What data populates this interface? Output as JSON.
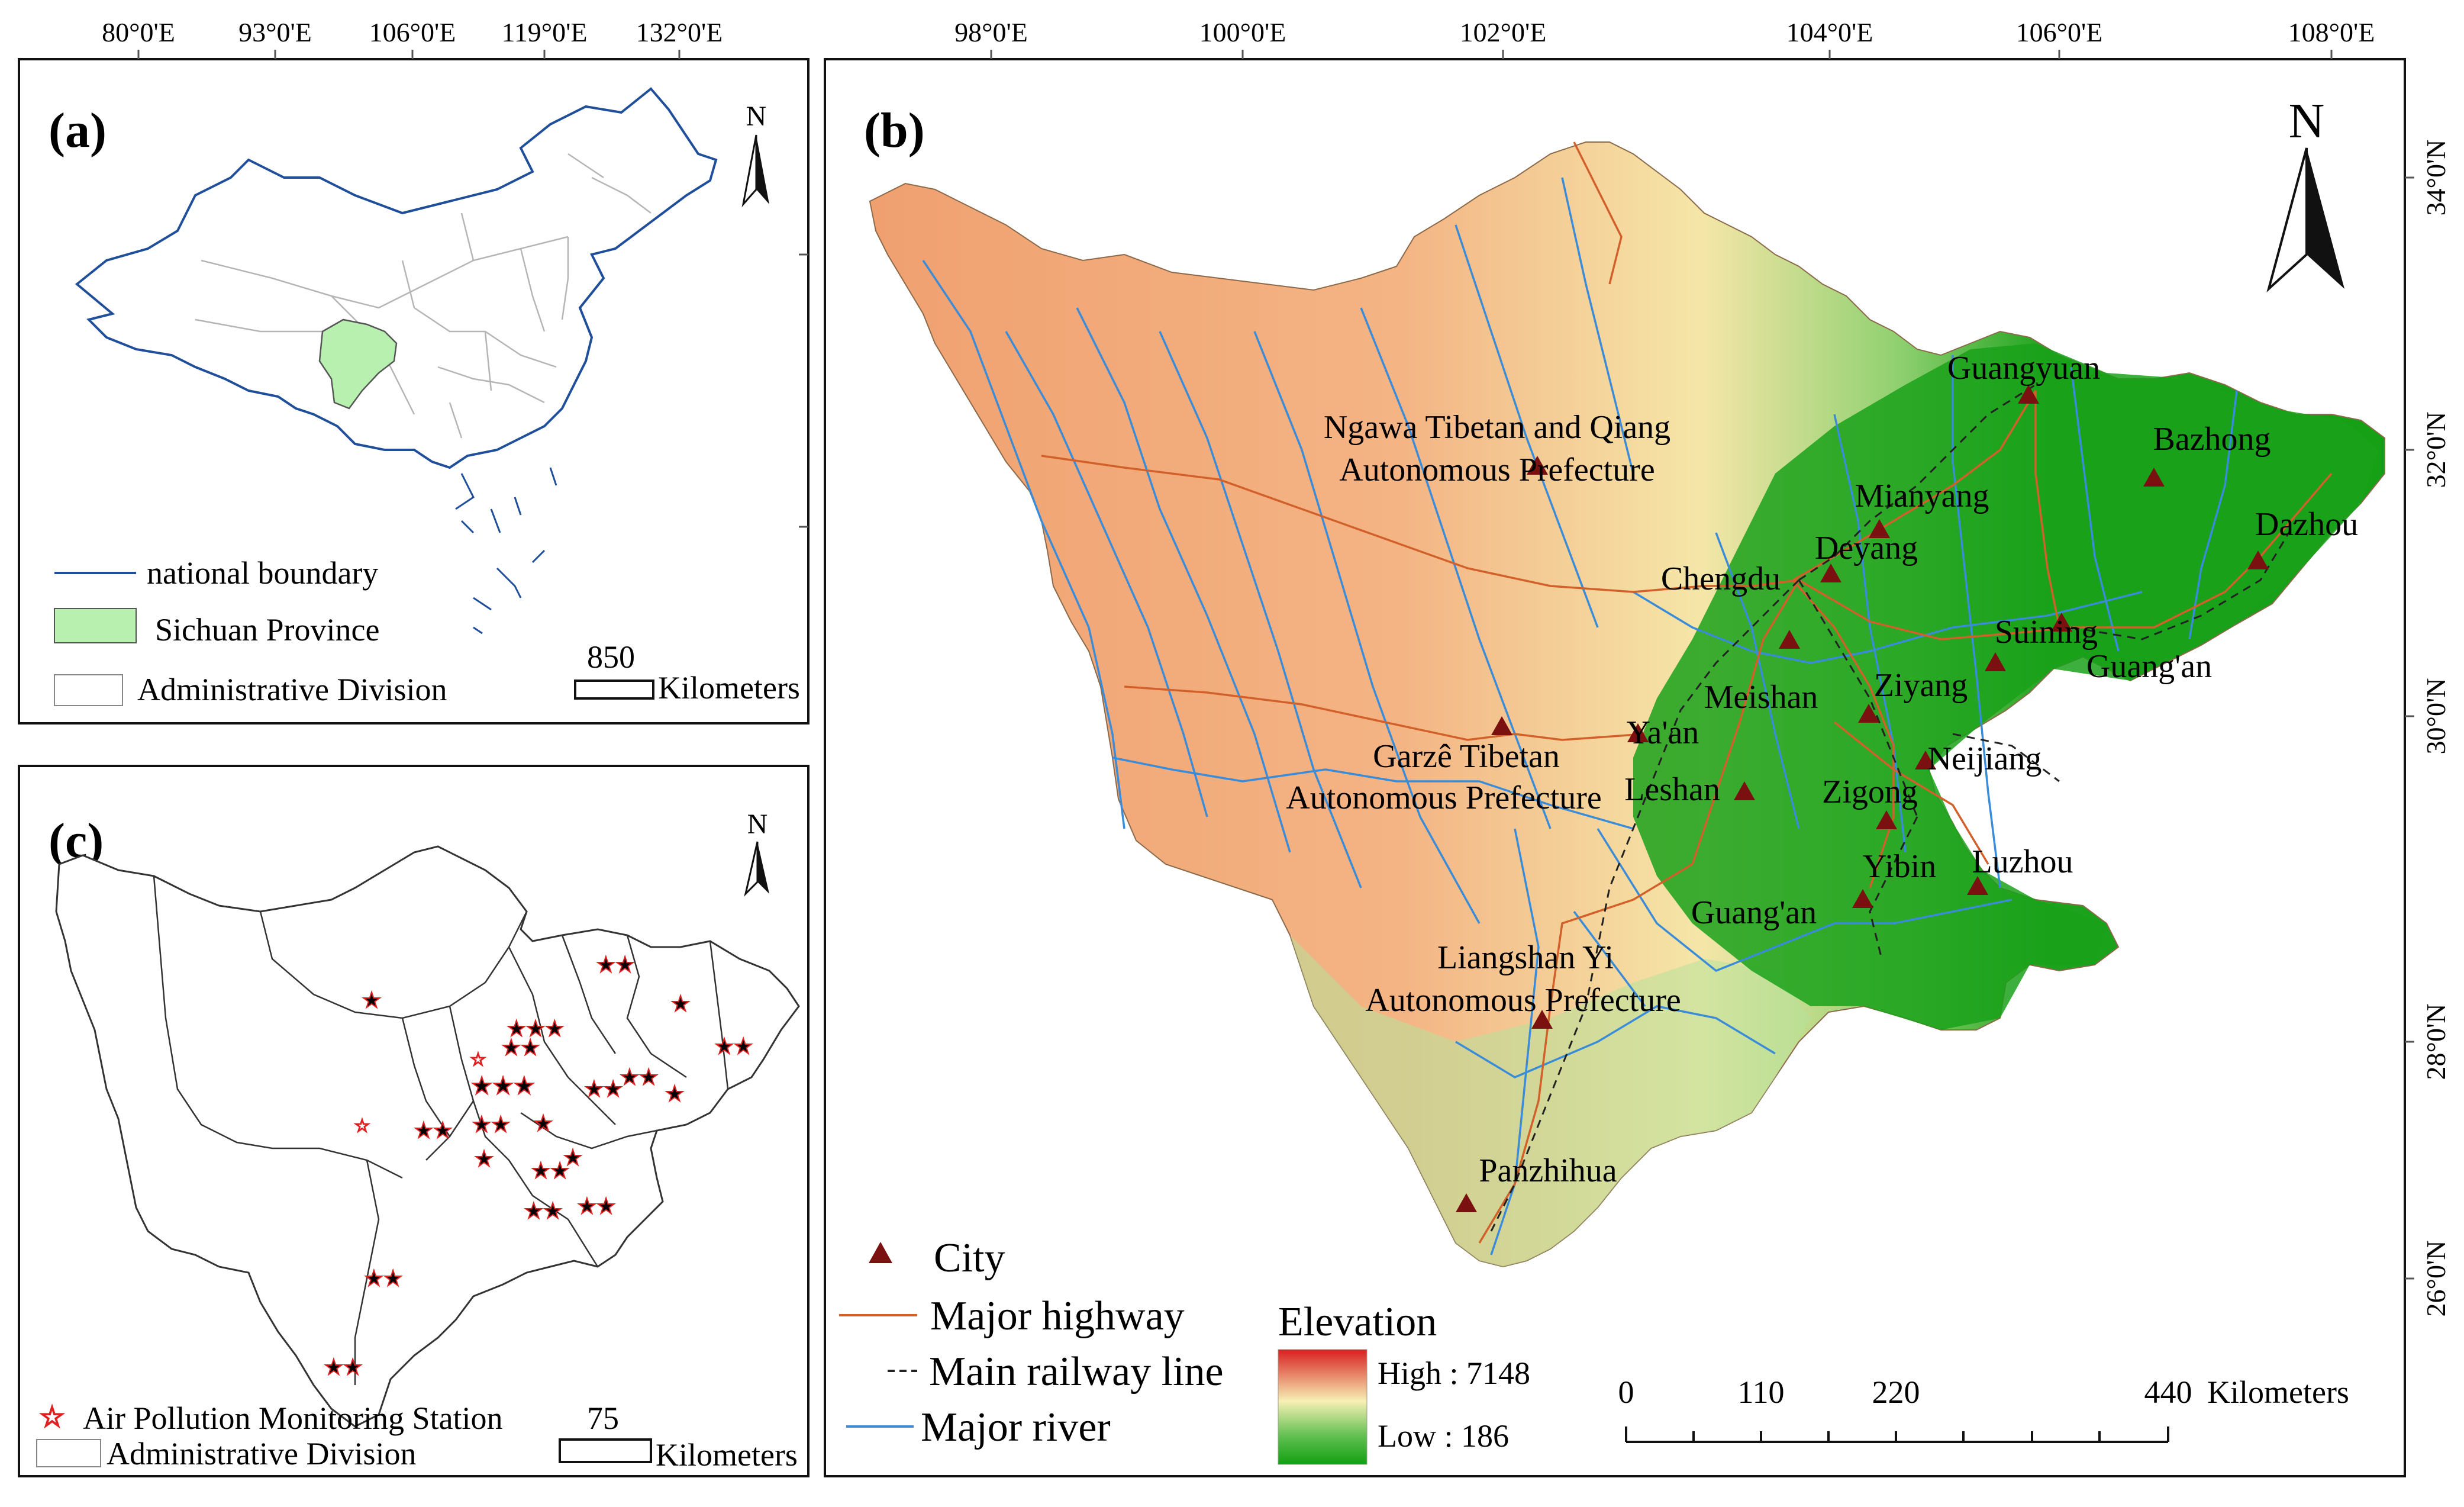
{
  "panels": {
    "a": {
      "label": "(a)",
      "top_ticks": [
        "80°0'E",
        "93°0'E",
        "106°0'E",
        "119°0'E",
        "132°0'E"
      ],
      "north": "N",
      "legend": {
        "boundary": "national boundary",
        "province": "Sichuan Province",
        "division": "Administrative Division"
      },
      "scale": {
        "value": "850",
        "unit": "Kilometers"
      }
    },
    "b": {
      "label": "(b)",
      "top_ticks": [
        "98°0'E",
        "100°0'E",
        "102°0'E",
        "104°0'E",
        "106°0'E",
        "108°0'E"
      ],
      "right_ticks": [
        "34°0'N",
        "32°0'N",
        "30°0'N",
        "28°0'N",
        "26°0'N"
      ],
      "north": "N",
      "cities": [
        {
          "name": "Guangyuan"
        },
        {
          "name": "Bazhong"
        },
        {
          "name": "Mianyang"
        },
        {
          "name": "Deyang"
        },
        {
          "name": "Dazhou"
        },
        {
          "name": "Chengdu"
        },
        {
          "name": "Suining"
        },
        {
          "name": "Guang'an"
        },
        {
          "name": "Meishan"
        },
        {
          "name": "Ziyang"
        },
        {
          "name": "Ya'an"
        },
        {
          "name": "Neijiang"
        },
        {
          "name": "Leshan"
        },
        {
          "name": "Zigong"
        },
        {
          "name": "Yibin"
        },
        {
          "name": "Luzhou"
        },
        {
          "name": "Guang'an"
        },
        {
          "name": "Panzhihua"
        }
      ],
      "prefectures": [
        {
          "line1": "Ngawa Tibetan and Qiang",
          "line2": "Autonomous Prefecture"
        },
        {
          "line1": "Garzê Tibetan",
          "line2": "Autonomous Prefecture"
        },
        {
          "line1": "Liangshan Yi",
          "line2": "Autonomous Prefecture"
        }
      ],
      "legend": {
        "city": "City",
        "highway": "Major highway",
        "railway": "Main railway line",
        "river": "Major river"
      },
      "elevation": {
        "title": "Elevation",
        "high": "High : 7148",
        "low": "Low : 186"
      },
      "scale": {
        "ticks": [
          "0",
          "110",
          "220",
          "440"
        ],
        "unit": "Kilometers"
      }
    },
    "c": {
      "label": "(c)",
      "north": "N",
      "legend": {
        "station": "Air Pollution Monitoring Station",
        "division": "Administrative Division"
      },
      "scale": {
        "value": "75",
        "unit": "Kilometers"
      }
    }
  },
  "colors": {
    "boundary": "#1f4e9a",
    "province_fill": "#b8f0b0",
    "division_line": "#b0b0b0",
    "highway": "#d1602a",
    "railway": "#222222",
    "river": "#3a8bd8",
    "city_marker": "#7a1010",
    "station": "#e02020",
    "elev_high": "#d82020",
    "elev_mid": "#f7f0b4",
    "elev_low": "#14a014"
  }
}
